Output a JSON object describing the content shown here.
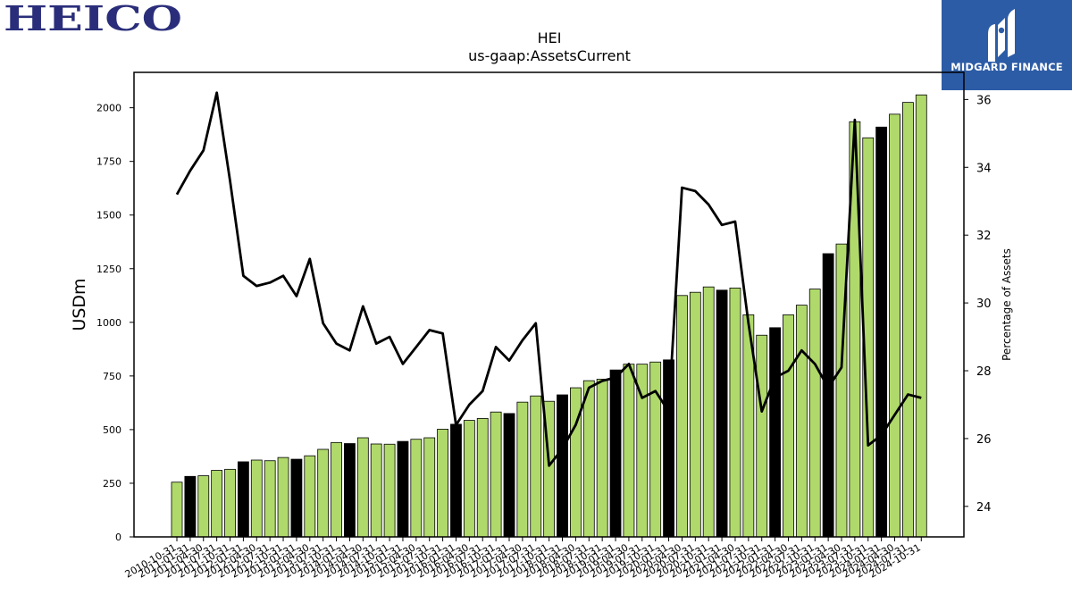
{
  "header": {
    "company_logo_text": "HEICO",
    "brand_name": "MIDGARD FINANCE",
    "colors": {
      "logo": "#2a2e7a",
      "badge": "#2d5ca6"
    }
  },
  "chart_data": {
    "type": "bar",
    "title": "HEI",
    "subtitle": "us-gaap:AssetsCurrent",
    "ylabel": "USDm",
    "y2label": "Percentage of Assets",
    "ylim": [
      0,
      2165
    ],
    "y2lim": [
      23.1,
      36.8
    ],
    "yticks": [
      0,
      250,
      500,
      750,
      1000,
      1250,
      1500,
      1750,
      2000
    ],
    "y2ticks": [
      24,
      26,
      28,
      30,
      32,
      34,
      36
    ],
    "grid": false,
    "colors": {
      "quarter_bar": "#b0d96b",
      "fiscal_year_bar": "#000000",
      "line": "#000000"
    },
    "categories": [
      "2010-10-31",
      "2011-01-31",
      "2011-04-30",
      "2011-07-31",
      "2011-10-31",
      "2012-01-31",
      "2012-04-30",
      "2012-07-31",
      "2012-10-31",
      "2013-01-31",
      "2013-04-30",
      "2013-07-31",
      "2013-10-31",
      "2014-01-31",
      "2014-04-30",
      "2014-07-31",
      "2014-10-31",
      "2015-01-31",
      "2015-04-30",
      "2015-07-31",
      "2015-10-31",
      "2016-01-31",
      "2016-04-30",
      "2016-07-31",
      "2016-10-31",
      "2017-01-31",
      "2017-04-30",
      "2017-07-31",
      "2017-10-31",
      "2018-01-31",
      "2018-04-30",
      "2018-07-31",
      "2018-10-31",
      "2019-01-31",
      "2019-04-30",
      "2019-07-31",
      "2019-10-31",
      "2020-01-31",
      "2020-04-30",
      "2020-07-31",
      "2020-10-31",
      "2021-01-31",
      "2021-04-30",
      "2021-07-31",
      "2021-10-31",
      "2022-01-31",
      "2022-04-30",
      "2022-07-31",
      "2022-10-31",
      "2023-01-31",
      "2023-04-30",
      "2023-07-31",
      "2023-10-31",
      "2024-01-31",
      "2024-04-30",
      "2024-07-31",
      "2024-10-31"
    ],
    "xtick_labels": [
      "2010-10-31",
      "2011-01-31",
      "2011-04-30",
      "2011-07-31",
      "2011-10-31",
      "2012-01-31",
      "2012-04-30",
      "2012-07-31",
      "2012-10-31",
      "2013-01-31",
      "2013-04-30",
      "2013-07-31",
      "2013-10-31",
      "2014-01-31",
      "2014-04-30",
      "2014-07-31",
      "2014-10-31",
      "2015-01-31",
      "2015-04-30",
      "2015-07-31",
      "2015-10-31",
      "2016-01-31",
      "2016-04-30",
      "2016-07-31",
      "2016-10-31",
      "2017-01-31",
      "2017-04-30",
      "2017-07-31",
      "2017-10-31",
      "2018-01-31",
      "2018-04-30",
      "2018-07-31",
      "2018-10-31",
      "2019-01-31",
      "2019-04-30",
      "2019-07-31",
      "2019-10-31",
      "2020-01-31",
      "2020-04-30",
      "2020-07-31",
      "2020-10-31",
      "2021-01-31",
      "2021-04-30",
      "2021-07-31",
      "2021-10-31",
      "2022-01-31",
      "2022-04-30",
      "2022-07-31",
      "2022-10-31",
      "2023-01-31",
      "2023-04-30",
      "2023-07-31",
      "2023-10-31",
      "2024-01-31",
      "2024-04-30",
      "2024-07-31",
      "2024-10-31"
    ],
    "fiscal_year_end": [
      false,
      true,
      false,
      false,
      false,
      true,
      false,
      false,
      false,
      true,
      false,
      false,
      false,
      true,
      false,
      false,
      false,
      true,
      false,
      false,
      false,
      true,
      false,
      false,
      false,
      true,
      false,
      false,
      false,
      true,
      false,
      false,
      false,
      true,
      false,
      false,
      false,
      true,
      false,
      false,
      false,
      true,
      false,
      false,
      false,
      true,
      false,
      false,
      false,
      true,
      false,
      false,
      false,
      true,
      false,
      false,
      false
    ],
    "series": [
      {
        "values": [
          255,
          282,
          285,
          310,
          315,
          350,
          358,
          355,
          370,
          362,
          378,
          408,
          440,
          435,
          462,
          433,
          432,
          445,
          455,
          462,
          502,
          525,
          543,
          552,
          582,
          575,
          628,
          657,
          632,
          662,
          695,
          728,
          735,
          778,
          805,
          805,
          815,
          825,
          1125,
          1140,
          1165,
          1150,
          1160,
          1035,
          940,
          975,
          1035,
          1080,
          1155,
          1320,
          1365,
          1935,
          1860,
          1910,
          1970,
          2025,
          2060
        ]
      }
    ],
    "line": {
      "values": [
        33.2,
        33.9,
        34.5,
        36.2,
        33.6,
        30.8,
        30.5,
        30.6,
        30.8,
        30.2,
        31.3,
        29.4,
        28.8,
        28.6,
        29.9,
        28.8,
        29.0,
        28.2,
        28.7,
        29.2,
        29.1,
        26.4,
        27.0,
        27.4,
        28.7,
        28.3,
        28.9,
        29.4,
        25.2,
        25.7,
        26.4,
        27.5,
        27.7,
        27.8,
        28.2,
        27.2,
        27.4,
        26.8,
        33.4,
        33.3,
        32.9,
        32.3,
        32.4,
        29.4,
        26.8,
        27.8,
        28.0,
        28.6,
        28.2,
        27.5,
        28.1,
        35.4,
        25.8,
        26.1,
        26.7,
        27.3,
        27.2
      ]
    }
  }
}
